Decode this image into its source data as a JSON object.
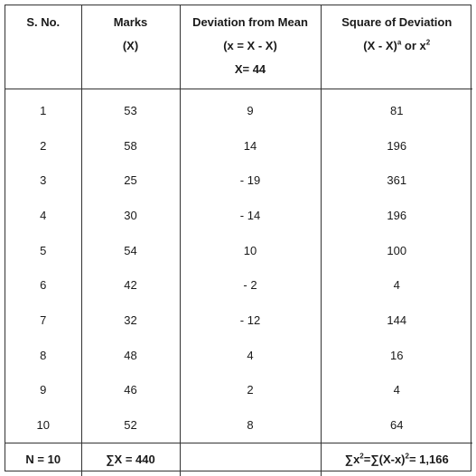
{
  "header": {
    "col1": {
      "line1": "S. No."
    },
    "col2": {
      "line1": "Marks",
      "line2": "(X)"
    },
    "col3": {
      "line1": "Deviation from Mean",
      "line2": "(x = X - X)",
      "line3": "X= 44"
    },
    "col4": {
      "line1": "Square of Deviation",
      "line2_base": "(X - X)",
      "line2_sup": "a",
      "line2_mid": " or x",
      "line2_sup2": "2"
    }
  },
  "rows": [
    {
      "sno": "1",
      "marks": "53",
      "deviation": "9",
      "square": "81"
    },
    {
      "sno": "2",
      "marks": "58",
      "deviation": "14",
      "square": "196"
    },
    {
      "sno": "3",
      "marks": "25",
      "deviation": "- 19",
      "square": "361"
    },
    {
      "sno": "4",
      "marks": "30",
      "deviation": "- 14",
      "square": "196"
    },
    {
      "sno": "5",
      "marks": "54",
      "deviation": "10",
      "square": "100"
    },
    {
      "sno": "6",
      "marks": "42",
      "deviation": "- 2",
      "square": "4"
    },
    {
      "sno": "7",
      "marks": "32",
      "deviation": "- 12",
      "square": "144"
    },
    {
      "sno": "8",
      "marks": "48",
      "deviation": "4",
      "square": "16"
    },
    {
      "sno": "9",
      "marks": "46",
      "deviation": "2",
      "square": "4"
    },
    {
      "sno": "10",
      "marks": "52",
      "deviation": "8",
      "square": "64"
    }
  ],
  "footer": {
    "n": "N = 10",
    "sum_x": "∑X = 440",
    "deviation": "",
    "sum_sq_a": "∑x",
    "sum_sq_sup1": "2",
    "sum_sq_b": "=∑(X-x)",
    "sum_sq_sup2": "2",
    "sum_sq_c": "= 1,166"
  }
}
